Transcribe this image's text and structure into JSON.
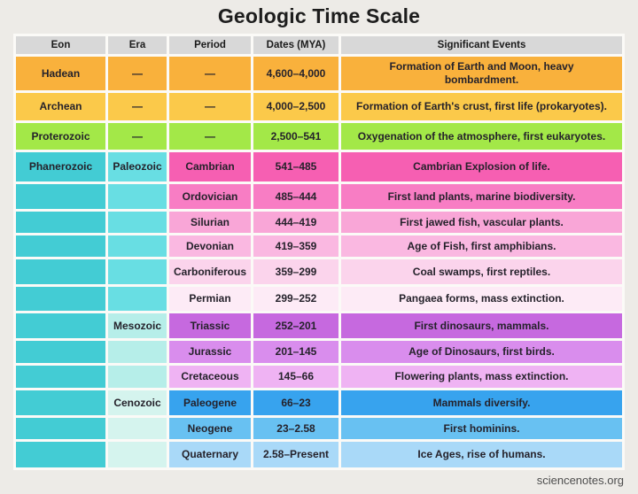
{
  "page": {
    "title": "Geologic Time Scale",
    "footer": "sciencenotes.org",
    "background_color": "#edebe7",
    "header_bg_color": "#d8d8d8",
    "separator_color": "#fbfaf7"
  },
  "chart_data": {
    "type": "table",
    "title": "Geologic Time Scale",
    "columns": [
      "Eon",
      "Era",
      "Period",
      "Dates (MYA)",
      "Significant Events"
    ],
    "rows": [
      [
        "Hadean",
        "—",
        "—",
        "4,600–4,000",
        "Formation of Earth and Moon, heavy\nbombardment."
      ],
      [
        "Archean",
        "—",
        "—",
        "4,000–2,500",
        "Formation of Earth's crust, first life (prokaryotes)."
      ],
      [
        "Proterozoic",
        "—",
        "—",
        "2,500–541",
        "Oxygenation of the atmosphere, first eukaryotes."
      ],
      [
        "Phanerozoic",
        "Paleozoic",
        "Cambrian",
        "541–485",
        "Cambrian Explosion of life."
      ],
      [
        "",
        "",
        "Ordovician",
        "485–444",
        "First land plants, marine biodiversity."
      ],
      [
        "",
        "",
        "Silurian",
        "444–419",
        "First jawed fish, vascular plants."
      ],
      [
        "",
        "",
        "Devonian",
        "419–359",
        "Age of Fish, first amphibians."
      ],
      [
        "",
        "",
        "Carboniferous",
        "359–299",
        "Coal swamps, first reptiles."
      ],
      [
        "",
        "",
        "Permian",
        "299–252",
        "Pangaea forms, mass extinction."
      ],
      [
        "",
        "Mesozoic",
        "Triassic",
        "252–201",
        "First dinosaurs, mammals."
      ],
      [
        "",
        "",
        "Jurassic",
        "201–145",
        "Age of Dinosaurs, first birds."
      ],
      [
        "",
        "",
        "Cretaceous",
        "145–66",
        "Flowering plants, mass extinction."
      ],
      [
        "",
        "Cenozoic",
        "Paleogene",
        "66–23",
        "Mammals diversify."
      ],
      [
        "",
        "",
        "Neogene",
        "23–2.58",
        "First hominins."
      ],
      [
        "",
        "",
        "Quaternary",
        "2.58–Present",
        "Ice Ages, rise of humans."
      ]
    ]
  },
  "ui": {
    "row_styles": [
      {
        "h": 38,
        "bg": [
          "#f9b13c",
          "#f9b13c",
          "#f9b13c",
          "#f9b13c",
          "#f9b13c"
        ]
      },
      {
        "h": 31,
        "bg": [
          "#fbc94a",
          "#fbc94a",
          "#fbc94a",
          "#fbc94a",
          "#fbc94a"
        ]
      },
      {
        "h": 30,
        "bg": [
          "#a3e848",
          "#a3e848",
          "#a3e848",
          "#a3e848",
          "#a3e848"
        ]
      },
      {
        "h": 33,
        "bg": [
          "#43ccd4",
          "#68dee3",
          "#f65fb2",
          "#f65fb2",
          "#f65fb2"
        ]
      },
      {
        "h": 28,
        "bg": [
          "#43ccd4",
          "#68dee3",
          "#f87dc4",
          "#f87dc4",
          "#f87dc4"
        ]
      },
      {
        "h": 24,
        "bg": [
          "#43ccd4",
          "#68dee3",
          "#f9a6d7",
          "#f9a6d7",
          "#f9a6d7"
        ]
      },
      {
        "h": 24,
        "bg": [
          "#43ccd4",
          "#68dee3",
          "#fab8e1",
          "#fab8e1",
          "#fab8e1"
        ]
      },
      {
        "h": 28,
        "bg": [
          "#43ccd4",
          "#68dee3",
          "#fbd4ec",
          "#fbd4ec",
          "#fbd4ec"
        ]
      },
      {
        "h": 27,
        "bg": [
          "#43ccd4",
          "#68dee3",
          "#fdebf6",
          "#fdebf6",
          "#fdebf6"
        ]
      },
      {
        "h": 28,
        "bg": [
          "#43ccd4",
          "#b6eee9",
          "#c669df",
          "#c669df",
          "#c669df"
        ]
      },
      {
        "h": 25,
        "bg": [
          "#43ccd4",
          "#b6eee9",
          "#d98ded",
          "#d98ded",
          "#d98ded"
        ]
      },
      {
        "h": 25,
        "bg": [
          "#43ccd4",
          "#b6eee9",
          "#efb3f3",
          "#efb3f3",
          "#efb3f3"
        ]
      },
      {
        "h": 28,
        "bg": [
          "#43ccd4",
          "#d5f4ee",
          "#37a3ee",
          "#37a3ee",
          "#37a3ee"
        ]
      },
      {
        "h": 24,
        "bg": [
          "#43ccd4",
          "#d5f4ee",
          "#68c1f2",
          "#68c1f2",
          "#68c1f2"
        ]
      },
      {
        "h": 29,
        "bg": [
          "#43ccd4",
          "#d5f4ee",
          "#a9d9f8",
          "#a9d9f8",
          "#a9d9f8"
        ]
      }
    ],
    "cell_names": [
      "eon-cell",
      "era-cell",
      "period-cell",
      "dates-cell",
      "events-cell"
    ]
  }
}
